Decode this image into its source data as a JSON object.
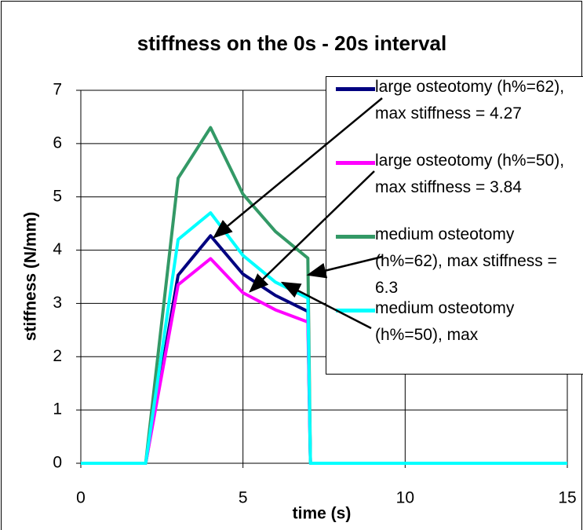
{
  "chart_data": {
    "type": "line",
    "title": "stiffness on the 0s - 20s interval",
    "x_label": "time (s)",
    "y_label": "stiffness (N/mm)",
    "x": [
      0,
      2,
      3,
      4,
      5,
      6,
      7,
      7.08,
      15
    ],
    "series": [
      {
        "name": "large osteotomy (h%=62), max stiffness = 4.27",
        "color": "#000080",
        "values": [
          0,
          0,
          3.53,
          4.27,
          3.55,
          3.15,
          2.85,
          0,
          0
        ]
      },
      {
        "name": "large osteotomy (h%=50), max stiffness = 3.84",
        "color": "#ff00ff",
        "values": [
          0,
          0,
          3.35,
          3.84,
          3.2,
          2.88,
          2.65,
          0,
          0
        ]
      },
      {
        "name": "medium osteotomy (h%=62), max stiffness = 6.3",
        "color": "#339966",
        "values": [
          0,
          0,
          5.35,
          6.3,
          5.05,
          4.35,
          3.85,
          0,
          0
        ]
      },
      {
        "name": "medium osteotomy (h%=50), max",
        "color": "#00ffff",
        "values": [
          0,
          0,
          4.2,
          4.7,
          3.9,
          3.4,
          3.1,
          0,
          0
        ]
      }
    ],
    "xlim": [
      0,
      15
    ],
    "xticks": [
      0,
      5,
      10,
      15
    ],
    "ylim": [
      0,
      7
    ],
    "yticks": [
      0,
      1,
      2,
      3,
      4,
      5,
      6,
      7
    ],
    "grid": true,
    "legend": "upper right"
  }
}
